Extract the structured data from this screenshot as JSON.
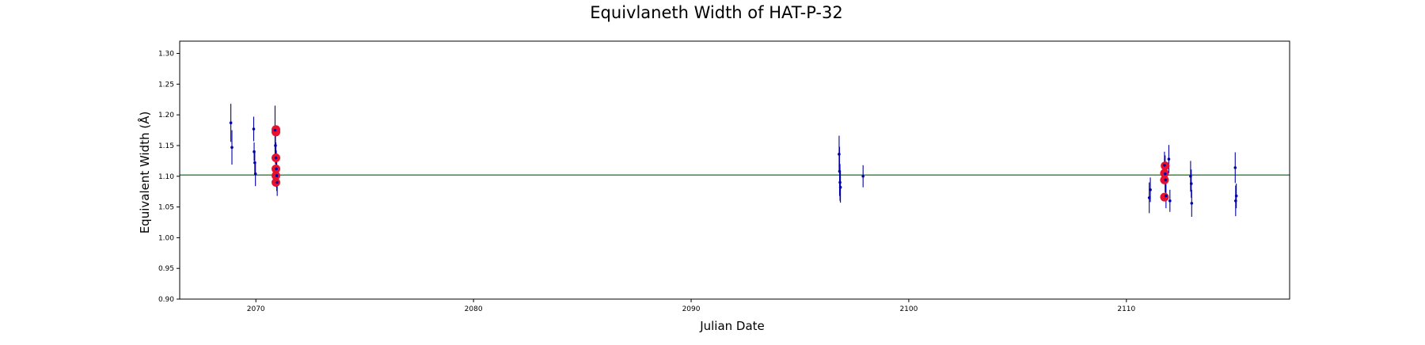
{
  "chart_data": {
    "type": "scatter",
    "title": "Equivlaneth Width of HAT-P-32",
    "xlabel": "Julian Date",
    "ylabel": "Equivalent Width (Å)",
    "xlim": [
      2066.5,
      2117.5
    ],
    "ylim": [
      0.9,
      1.32
    ],
    "x_ticks": [
      2070,
      2080,
      2090,
      2100,
      2110
    ],
    "y_ticks": [
      0.9,
      0.95,
      1.0,
      1.05,
      1.1,
      1.15,
      1.2,
      1.25,
      1.3
    ],
    "grid": false,
    "reference_line": {
      "y": 1.102,
      "color": "#2e7d32"
    },
    "colors": {
      "points": "#0000aa",
      "highlight": "#e8112d",
      "errorbar": "#0000aa"
    },
    "series": [
      {
        "marker": "dot-with-errorbar",
        "points": [
          {
            "x": 2068.85,
            "y": 1.187,
            "err": 0.031
          },
          {
            "x": 2068.9,
            "y": 1.147,
            "err": 0.028
          },
          {
            "x": 2069.9,
            "y": 1.177,
            "err": 0.02
          },
          {
            "x": 2069.92,
            "y": 1.14,
            "err": 0.015
          },
          {
            "x": 2069.95,
            "y": 1.122,
            "err": 0.018
          },
          {
            "x": 2069.98,
            "y": 1.104,
            "err": 0.02
          },
          {
            "x": 2070.88,
            "y": 1.175,
            "err": 0.04
          },
          {
            "x": 2070.9,
            "y": 1.15,
            "err": 0.03
          },
          {
            "x": 2070.92,
            "y": 1.13,
            "err": 0.025
          },
          {
            "x": 2070.94,
            "y": 1.112,
            "err": 0.03
          },
          {
            "x": 2070.96,
            "y": 1.101,
            "err": 0.025
          },
          {
            "x": 2070.98,
            "y": 1.09,
            "err": 0.022
          },
          {
            "x": 2096.8,
            "y": 1.136,
            "err": 0.03
          },
          {
            "x": 2096.82,
            "y": 1.108,
            "err": 0.04
          },
          {
            "x": 2096.84,
            "y": 1.09,
            "err": 0.03
          },
          {
            "x": 2096.86,
            "y": 1.082,
            "err": 0.025
          },
          {
            "x": 2097.9,
            "y": 1.1,
            "err": 0.018
          },
          {
            "x": 2111.05,
            "y": 1.065,
            "err": 0.025
          },
          {
            "x": 2111.1,
            "y": 1.078,
            "err": 0.02
          },
          {
            "x": 2111.75,
            "y": 1.118,
            "err": 0.022
          },
          {
            "x": 2111.78,
            "y": 1.104,
            "err": 0.03
          },
          {
            "x": 2111.8,
            "y": 1.094,
            "err": 0.028
          },
          {
            "x": 2111.82,
            "y": 1.068,
            "err": 0.02
          },
          {
            "x": 2111.95,
            "y": 1.128,
            "err": 0.023
          },
          {
            "x": 2112.0,
            "y": 1.06,
            "err": 0.018
          },
          {
            "x": 2112.95,
            "y": 1.1,
            "err": 0.025
          },
          {
            "x": 2112.98,
            "y": 1.088,
            "err": 0.023
          },
          {
            "x": 2113.0,
            "y": 1.056,
            "err": 0.022
          },
          {
            "x": 2115.0,
            "y": 1.114,
            "err": 0.025
          },
          {
            "x": 2115.02,
            "y": 1.06,
            "err": 0.025
          },
          {
            "x": 2115.05,
            "y": 1.068,
            "err": 0.02
          }
        ]
      },
      {
        "marker": "highlight-circle",
        "points": [
          {
            "x": 2070.92,
            "y": 1.176
          },
          {
            "x": 2070.92,
            "y": 1.172
          },
          {
            "x": 2070.92,
            "y": 1.13
          },
          {
            "x": 2070.92,
            "y": 1.112
          },
          {
            "x": 2070.92,
            "y": 1.101
          },
          {
            "x": 2070.92,
            "y": 1.09
          },
          {
            "x": 2111.78,
            "y": 1.117
          },
          {
            "x": 2111.75,
            "y": 1.105
          },
          {
            "x": 2111.75,
            "y": 1.094
          },
          {
            "x": 2111.75,
            "y": 1.066
          }
        ]
      }
    ]
  }
}
